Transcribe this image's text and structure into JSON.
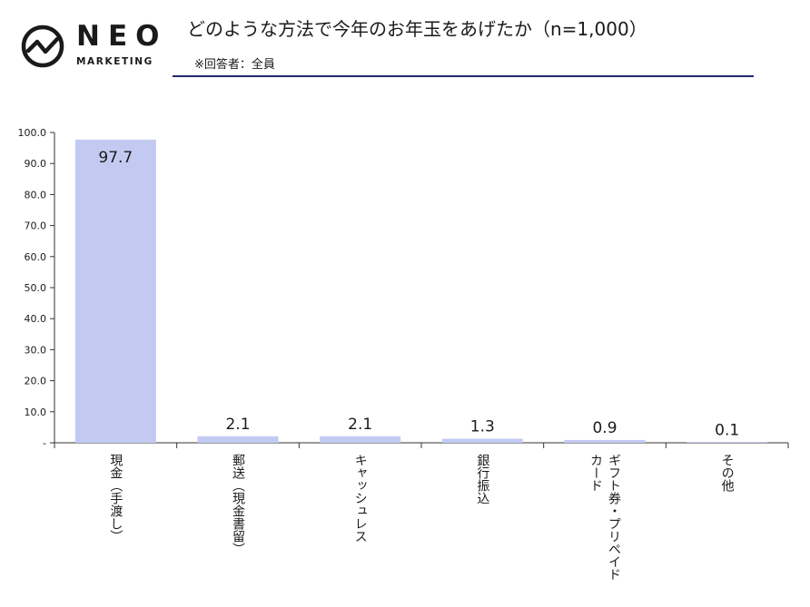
{
  "brand": {
    "name": "NEO",
    "tagline": "MARKETING",
    "logo_icon": "neo-pulse-icon"
  },
  "header": {
    "title": "どのような方法で今年のお年玉をあげたか（n=1,000）",
    "subtitle": "※回答者：全員"
  },
  "colors": {
    "bar": "#c3caf2",
    "rule": "#1e2a6e",
    "axis": "#333333"
  },
  "chart_data": {
    "type": "bar",
    "categories": [
      "現金（手渡し）",
      "郵送（現金書留）",
      "キャッシュレス",
      "銀行振込",
      "ギフト券・プリペイドカード",
      "その他"
    ],
    "category_lines": [
      [
        "現金（手渡し）"
      ],
      [
        "郵送（現金書留）"
      ],
      [
        "キャッシュレス"
      ],
      [
        "銀行振込"
      ],
      [
        "ギフト券・プリペイド",
        "カード"
      ],
      [
        "その他"
      ]
    ],
    "values": [
      97.7,
      2.1,
      2.1,
      1.3,
      0.9,
      0.1
    ],
    "value_labels": [
      "97.7",
      "2.1",
      "2.1",
      "1.3",
      "0.9",
      "0.1"
    ],
    "ylim": [
      0,
      100
    ],
    "yticks": [
      0,
      10,
      20,
      30,
      40,
      50,
      60,
      70,
      80,
      90,
      100
    ],
    "ytick_labels": [
      "-",
      "10.0",
      "20.0",
      "30.0",
      "40.0",
      "50.0",
      "60.0",
      "70.0",
      "80.0",
      "90.0",
      "100.0"
    ],
    "title": "",
    "xlabel": "",
    "ylabel": "",
    "grid": false,
    "legend": "none"
  }
}
